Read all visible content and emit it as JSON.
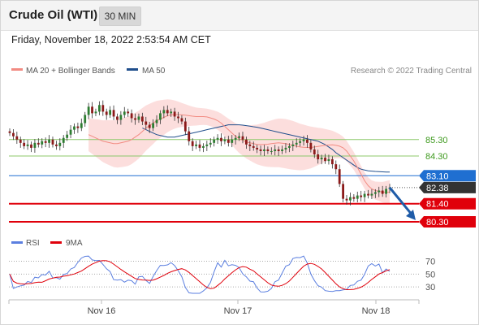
{
  "header": {
    "title": "Crude Oil (WTI)",
    "timeframe": "30 MIN"
  },
  "timestamp": "Friday, November 18, 2022 2:53:54 AM CET",
  "legend": {
    "ma20": "MA 20 + Bollinger Bands",
    "ma50": "MA 50",
    "copyright": "Research © 2022 Trading Central"
  },
  "rsi_legend": {
    "rsi": "RSI",
    "ma": "9MA"
  },
  "colors": {
    "ma20": "#f28b82",
    "ma50": "#1f4e8c",
    "resistance": "#8cc86a",
    "pivot": "#1f6fd1",
    "support": "#e0000b",
    "current": "#333333",
    "arrow": "#1f5ca8",
    "rsi": "#5b7fe0",
    "rsi_ma": "#e0000b"
  },
  "chart_data": [
    {
      "type": "candlestick",
      "x_ticks": [
        "Nov 16",
        "Nov 17",
        "Nov 18"
      ],
      "levels": [
        {
          "label": "85.30",
          "value": 85.3,
          "kind": "resistance"
        },
        {
          "label": "84.30",
          "value": 84.3,
          "kind": "resistance"
        },
        {
          "label": "83.10",
          "value": 83.1,
          "kind": "pivot"
        },
        {
          "label": "82.38",
          "value": 82.38,
          "kind": "current"
        },
        {
          "label": "81.40",
          "value": 81.4,
          "kind": "support"
        },
        {
          "label": "80.30",
          "value": 80.3,
          "kind": "support"
        }
      ],
      "ylim": [
        80.2,
        88.6
      ],
      "close": [
        85.7,
        85.5,
        85.3,
        85.1,
        84.9,
        85.0,
        84.8,
        85.1,
        85.0,
        85.2,
        85.1,
        85.3,
        85.0,
        84.9,
        85.1,
        85.4,
        85.6,
        85.9,
        86.1,
        86.0,
        86.3,
        86.8,
        87.3,
        86.9,
        87.0,
        87.4,
        87.0,
        86.8,
        87.1,
        86.7,
        86.5,
        86.8,
        87.0,
        86.9,
        86.6,
        86.5,
        86.7,
        86.4,
        86.2,
        86.0,
        86.3,
        86.5,
        86.9,
        87.1,
        86.9,
        87.0,
        86.7,
        86.6,
        86.4,
        85.8,
        85.2,
        84.9,
        85.0,
        84.8,
        84.9,
        85.0,
        85.1,
        85.3,
        85.4,
        85.2,
        85.3,
        85.1,
        85.3,
        85.4,
        85.5,
        85.3,
        85.0,
        84.9,
        84.8,
        84.7,
        84.6,
        84.7,
        84.6,
        84.6,
        84.7,
        84.6,
        84.7,
        84.8,
        84.9,
        85.0,
        85.1,
        85.2,
        85.3,
        85.1,
        84.7,
        84.4,
        84.1,
        84.2,
        84.0,
        84.1,
        83.8,
        83.5,
        82.6,
        81.7,
        81.6,
        81.8,
        81.7,
        81.9,
        81.8,
        82.0,
        81.9,
        82.0,
        82.1,
        82.2,
        82.0,
        82.3,
        82.38
      ],
      "ma20": [
        85.6,
        85.5,
        85.4,
        85.3,
        85.2,
        85.15,
        85.1,
        85.05,
        85.05,
        85.1,
        85.15,
        85.2,
        85.3,
        85.45,
        85.6,
        85.8,
        86.0,
        86.15,
        86.3,
        86.45,
        86.55,
        86.65,
        86.75,
        86.8,
        86.82,
        86.82,
        86.8,
        86.78,
        86.75,
        86.72,
        86.7,
        86.7,
        86.7,
        86.68,
        86.62,
        86.55,
        86.45,
        86.3,
        86.1,
        85.9,
        85.7,
        85.5,
        85.35,
        85.25,
        85.15,
        85.1,
        85.05,
        85.0,
        85.0,
        85.0,
        85.02,
        85.05,
        85.08,
        85.1,
        85.08,
        85.05,
        85.0,
        84.95,
        84.9,
        84.85,
        84.83,
        84.82,
        84.82,
        84.85,
        84.88,
        84.92,
        84.95,
        84.97,
        84.98,
        84.95,
        84.9,
        84.8,
        84.6,
        84.3,
        84.0,
        83.6,
        83.2,
        82.8,
        82.5,
        82.3,
        82.2,
        82.15,
        82.1,
        82.1,
        82.1
      ],
      "ma50": [
        86.0,
        85.9,
        85.8,
        85.7,
        85.6,
        85.55,
        85.5,
        85.45,
        85.45,
        85.45,
        85.5,
        85.55,
        85.6,
        85.65,
        85.7,
        85.75,
        85.8,
        85.85,
        85.9,
        85.95,
        86.0,
        86.05,
        86.1,
        86.15,
        86.2,
        86.2,
        86.2,
        86.2,
        86.18,
        86.15,
        86.12,
        86.08,
        86.05,
        86.0,
        85.95,
        85.9,
        85.85,
        85.8,
        85.75,
        85.7,
        85.65,
        85.6,
        85.55,
        85.5,
        85.45,
        85.4,
        85.35,
        85.3,
        85.25,
        85.2,
        85.1,
        85.0,
        84.85,
        84.7,
        84.5,
        84.35,
        84.2,
        84.05,
        83.9,
        83.75,
        83.6,
        83.5,
        83.45,
        83.4,
        83.38,
        83.36,
        83.35,
        83.34,
        83.33,
        83.33
      ],
      "rsi_levels": [
        70,
        50,
        30
      ],
      "rsi_ylim": [
        15,
        82
      ]
    }
  ]
}
